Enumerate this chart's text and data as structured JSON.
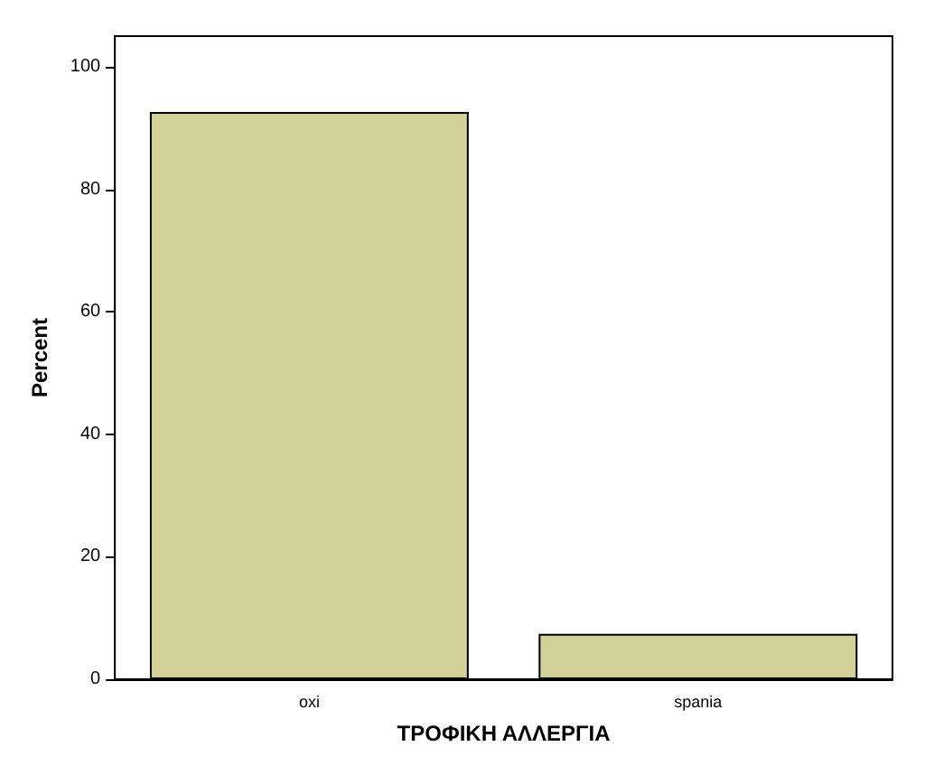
{
  "chart_data": {
    "type": "bar",
    "xlabel": "ΤΡΟΦΙΚΗ ΑΛΛΕΡΓΙΑ",
    "ylabel": "Percent",
    "categories": [
      "oxi",
      "spania"
    ],
    "values": [
      92.6,
      7.4
    ],
    "color": "#d3cf98",
    "ylim": [
      0,
      105
    ],
    "yticks": [
      0,
      20,
      40,
      60,
      80,
      100
    ],
    "grid": false
  }
}
